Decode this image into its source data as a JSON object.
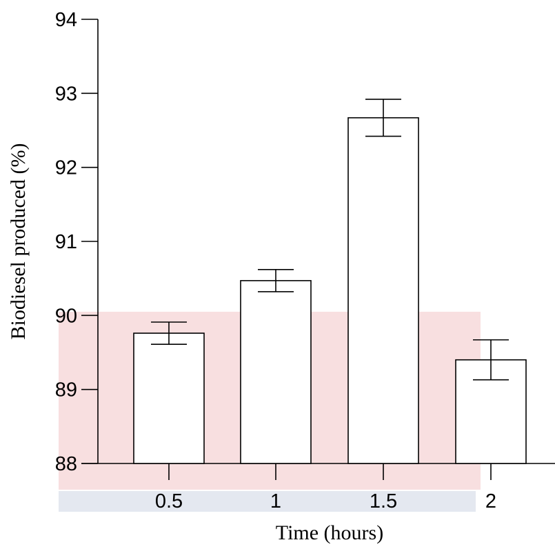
{
  "chart_data": {
    "type": "bar",
    "x_label": "Time (hours)",
    "y_label": "Biodiesel produced (%)",
    "categories": [
      "0.5",
      "1",
      "1.5",
      "2"
    ],
    "values": [
      89.76,
      90.47,
      92.67,
      89.4
    ],
    "errors": [
      0.15,
      0.15,
      0.25,
      0.27
    ],
    "color": "#ffffff",
    "ylim": [
      88,
      94
    ],
    "yticks": [
      88,
      89,
      90,
      91,
      92,
      93,
      94
    ]
  }
}
